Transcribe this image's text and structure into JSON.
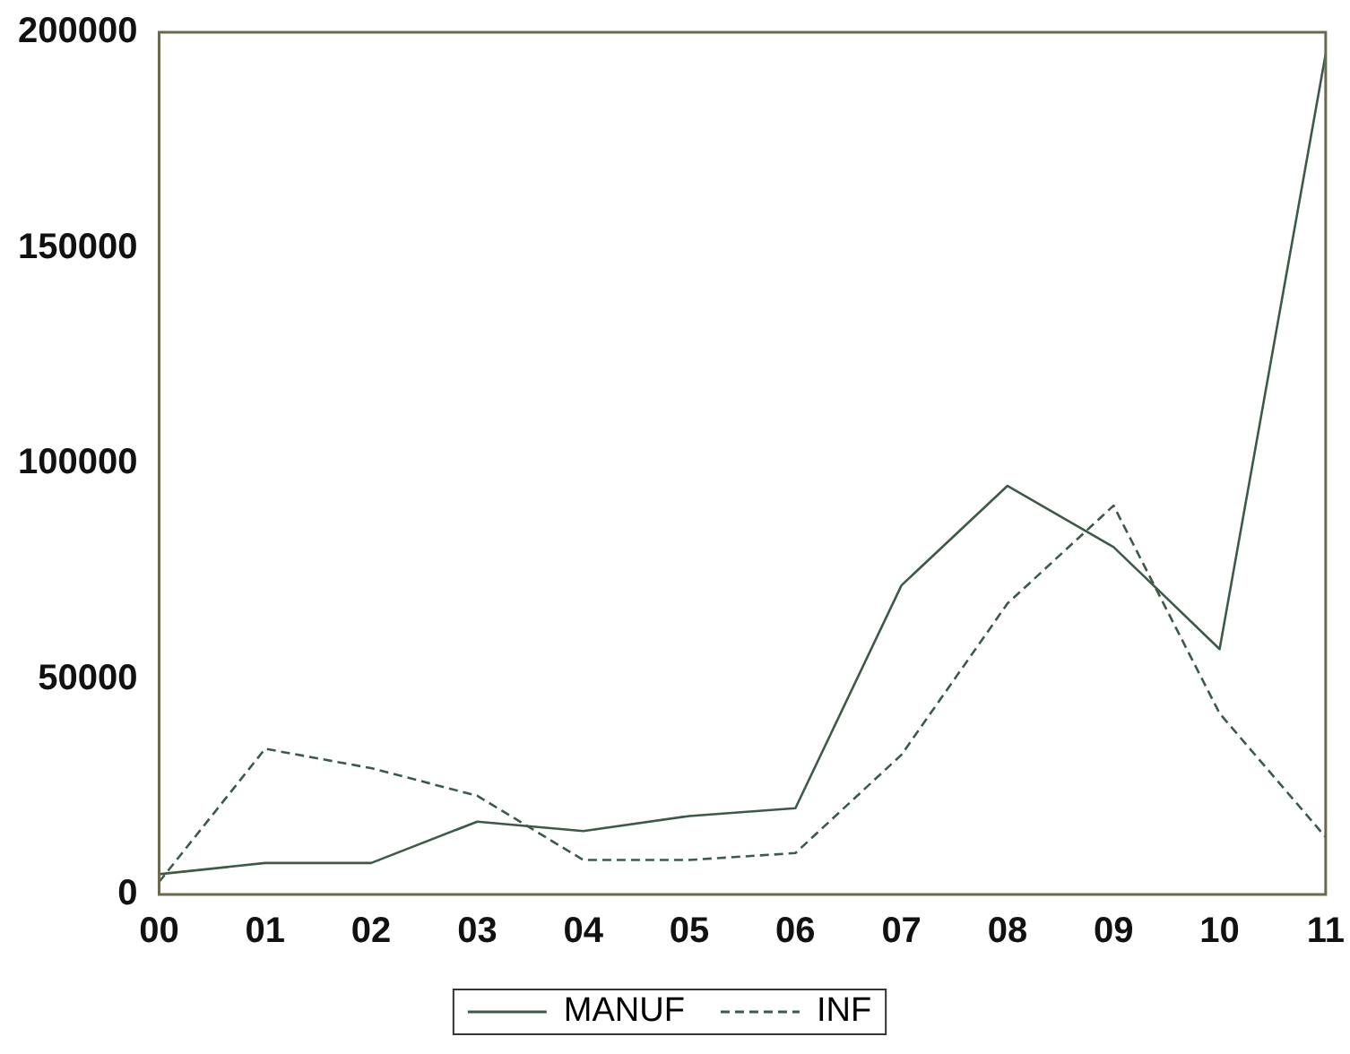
{
  "chart_data": {
    "type": "line",
    "categories": [
      "00",
      "01",
      "02",
      "03",
      "04",
      "05",
      "06",
      "07",
      "08",
      "09",
      "10",
      "11"
    ],
    "series": [
      {
        "name": "MANUF",
        "color": "#3d5a48",
        "line_style": "solid",
        "values": [
          4700,
          7300,
          7300,
          16900,
          14700,
          18200,
          20000,
          71700,
          94800,
          80600,
          56900,
          195000
        ]
      },
      {
        "name": "INF",
        "color": "#3d5a48",
        "line_style": "dashed",
        "values": [
          2900,
          33800,
          29300,
          22900,
          8000,
          8000,
          9600,
          32400,
          67500,
          90200,
          42000,
          13300
        ]
      }
    ],
    "ylim": [
      0,
      200000
    ],
    "yticks": [
      0,
      50000,
      100000,
      150000,
      200000
    ],
    "grid": false,
    "legend": "bottom",
    "marker": "none"
  }
}
